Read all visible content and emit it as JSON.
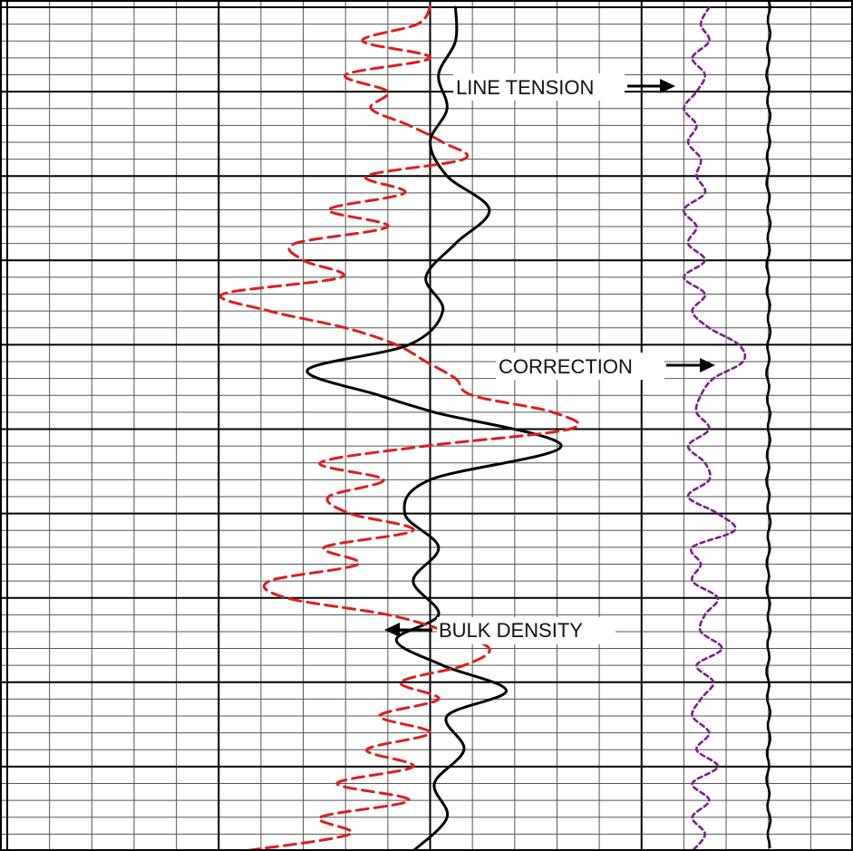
{
  "chart_data": {
    "type": "line",
    "title": "",
    "xlabel": "",
    "ylabel": "",
    "grid": true,
    "x_divisions": 20,
    "y_divisions": 50,
    "annotations": {
      "line_tension": "LINE TENSION",
      "correction": "CORRECTION",
      "bulk_density": "BULK DENSITY"
    },
    "series": [
      {
        "key": "bulk_density",
        "color": "#000000",
        "style": "solid",
        "y": [
          0,
          2,
          4,
          6,
          8,
          10,
          12,
          14,
          16,
          18,
          20,
          21.5,
          23,
          24,
          26,
          28,
          30,
          32,
          34,
          36,
          37.5,
          39,
          40.5,
          42,
          44,
          46,
          48,
          50
        ],
        "x": [
          10.6,
          10.6,
          10.2,
          10.4,
          10.0,
          10.4,
          11.4,
          10.6,
          9.9,
          10.3,
          9.5,
          7.1,
          8.8,
          10.1,
          13.1,
          10.0,
          9.4,
          10.2,
          9.6,
          10.2,
          9.2,
          10.3,
          11.8,
          10.4,
          10.8,
          10.1,
          10.4,
          9.6
        ]
      },
      {
        "key": "density_correction",
        "color": "#dd1e1e",
        "style": "dashed",
        "y": [
          0,
          1,
          2,
          3,
          4,
          5,
          6,
          7,
          8,
          9,
          10,
          11,
          12,
          13,
          14,
          15,
          16,
          17,
          18,
          19,
          20,
          21,
          22,
          23,
          24,
          25,
          26,
          27,
          28,
          29,
          30,
          31,
          32,
          33,
          34,
          35,
          36,
          37,
          38,
          39,
          40,
          41,
          42,
          43,
          44,
          45,
          46,
          47,
          48,
          49,
          50
        ],
        "x": [
          10.0,
          9.7,
          8.4,
          10.0,
          8.0,
          9.0,
          8.6,
          9.5,
          10.3,
          10.8,
          8.5,
          9.4,
          7.6,
          9.0,
          6.8,
          7.0,
          7.9,
          5.1,
          6.2,
          8.0,
          9.2,
          9.9,
          10.6,
          11.0,
          12.9,
          13.3,
          9.9,
          7.4,
          8.9,
          7.6,
          8.1,
          9.6,
          7.5,
          8.3,
          6.2,
          6.6,
          9.0,
          10.4,
          11.4,
          10.8,
          9.3,
          10.2,
          8.8,
          10.0,
          8.5,
          9.6,
          7.8,
          9.5,
          7.4,
          8.1,
          5.6
        ]
      },
      {
        "key": "line_tension",
        "color": "#7a1f8a",
        "style": "dotted",
        "y": [
          0,
          1,
          2,
          3,
          4,
          5,
          6,
          7,
          8,
          9,
          10,
          11,
          12,
          13,
          14,
          15,
          16,
          17,
          18,
          19,
          20,
          21,
          22,
          23,
          24,
          25,
          26,
          27,
          28,
          29,
          30,
          31,
          32,
          33,
          34,
          35,
          36,
          37,
          38,
          39,
          40,
          41,
          42,
          43,
          44,
          45,
          46,
          47,
          48,
          49,
          50
        ],
        "x": [
          16.6,
          16.4,
          16.6,
          16.2,
          16.5,
          16.3,
          16.0,
          16.3,
          16.1,
          16.4,
          16.3,
          16.5,
          16.0,
          16.3,
          16.1,
          16.5,
          16.0,
          16.5,
          16.2,
          16.6,
          17.3,
          17.4,
          16.7,
          16.4,
          16.3,
          16.6,
          16.1,
          16.5,
          16.6,
          16.1,
          16.8,
          17.2,
          16.2,
          16.4,
          16.2,
          16.8,
          16.5,
          16.4,
          16.9,
          16.3,
          16.7,
          16.4,
          16.2,
          16.6,
          16.3,
          16.8,
          16.2,
          16.6,
          16.2,
          16.5,
          16.2
        ]
      }
    ]
  }
}
